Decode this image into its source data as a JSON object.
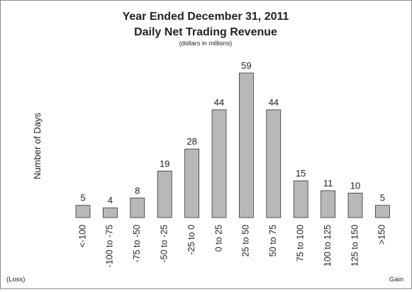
{
  "chart_data": {
    "type": "bar",
    "title": "Year Ended December 31, 2011",
    "title_line2": "Daily Net Trading Revenue",
    "subtitle": "(dollars in millions)",
    "ylabel": "Number of Days",
    "xlabel_left": "(Loss)",
    "xlabel_right": "Gain",
    "categories": [
      "<-100",
      "-100 to -75",
      "-75 to -50",
      "-50 to -25",
      "-25 to 0",
      "0 to 25",
      "25 to 50",
      "50 to 75",
      "75 to 100",
      "100 to 125",
      "125 to 150",
      ">150"
    ],
    "values": [
      5,
      4,
      8,
      19,
      28,
      44,
      59,
      44,
      15,
      11,
      10,
      5
    ],
    "ylim": [
      0,
      59
    ],
    "grid": false,
    "legend": "none",
    "bar_color": "#b8b8b8",
    "bar_edge_color": "#333333"
  }
}
